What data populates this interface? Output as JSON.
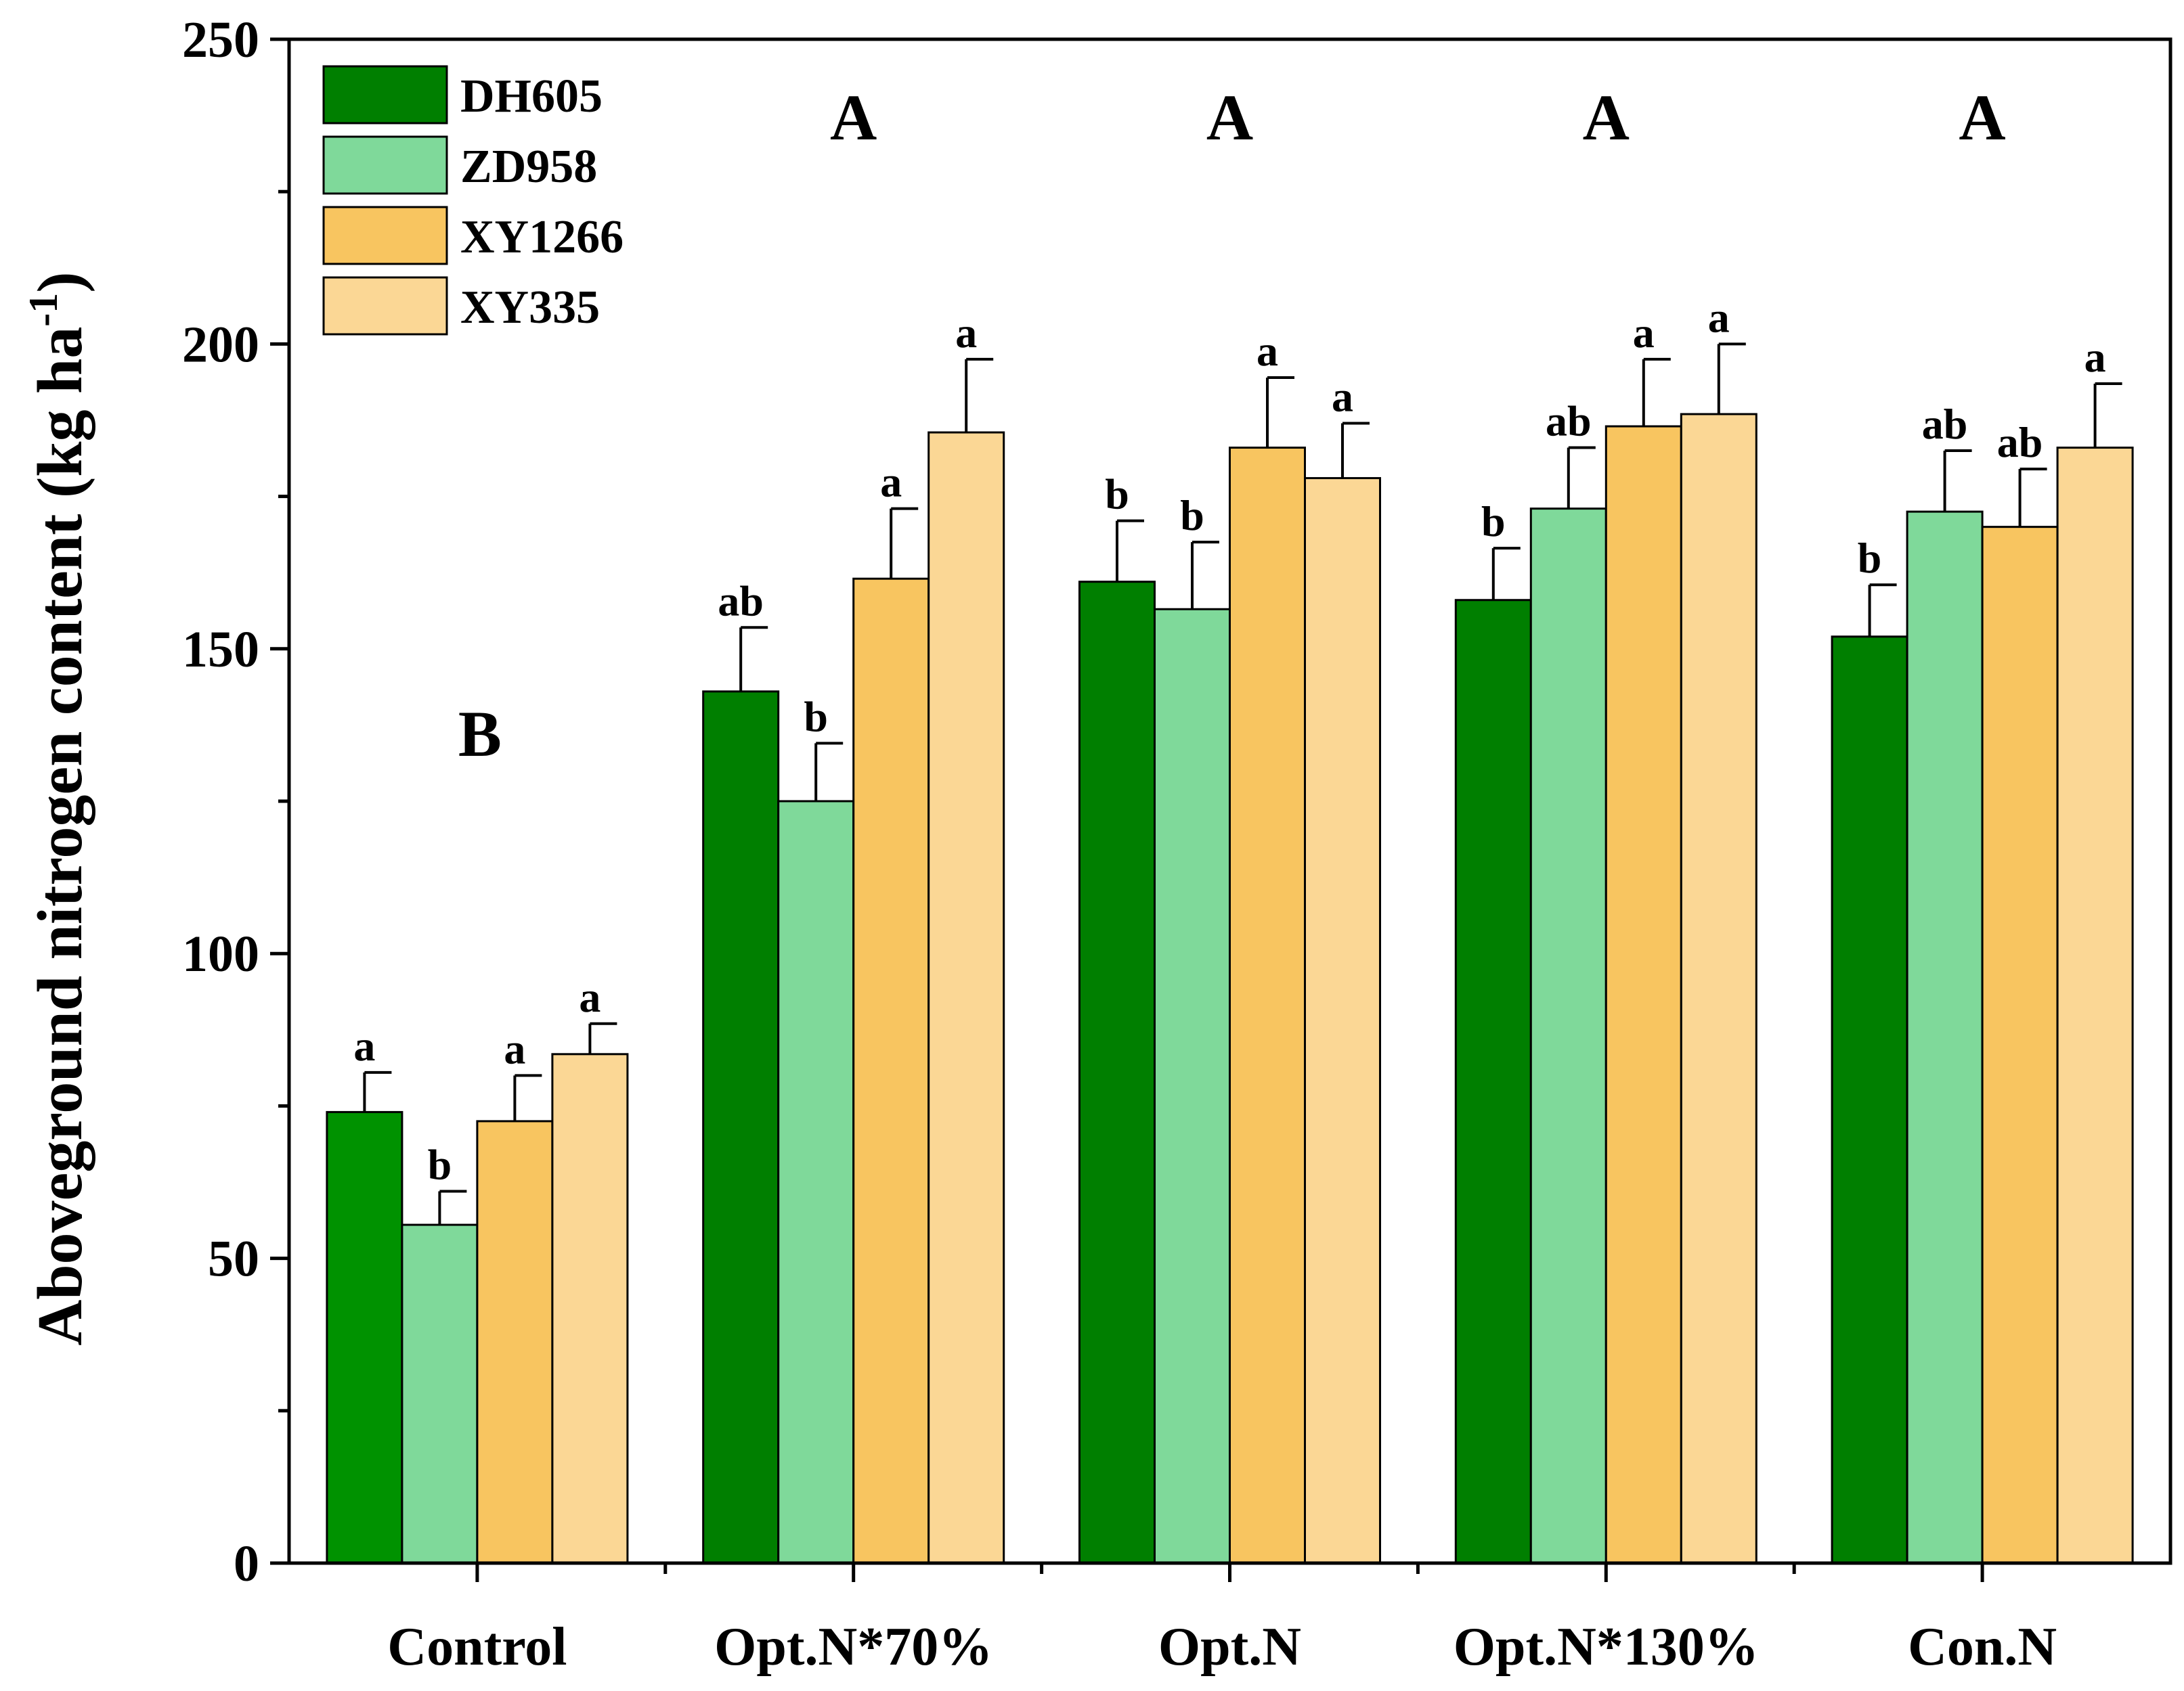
{
  "chart_data": {
    "type": "bar",
    "ylabel": "Aboveground nitrogen content (kg ha",
    "ylabel_superscript": "-1",
    "ylabel_suffix": ")",
    "xlabel": "",
    "ylim": [
      0,
      250
    ],
    "yticks": [
      0,
      50,
      100,
      150,
      200,
      250
    ],
    "yticks_minor_step": 25,
    "legend_position": "top-left",
    "categories": [
      "Control",
      "Opt.N*70%",
      "Opt.N",
      "Opt.N*130%",
      "Con.N"
    ],
    "group_letters": [
      "B",
      "A",
      "A",
      "A",
      "A"
    ],
    "series": [
      {
        "name": "DH605",
        "color": "#007F00",
        "values": [
          74,
          143,
          161,
          158,
          152
        ],
        "errors": [
          6.5,
          10.5,
          10,
          8.5,
          8.5
        ],
        "letters": [
          "a",
          "ab",
          "b",
          "b",
          "b"
        ]
      },
      {
        "name": "ZD958",
        "color": "#7FD99A",
        "values": [
          55.5,
          125,
          156.5,
          173,
          172.5
        ],
        "errors": [
          5.5,
          9.5,
          11,
          10,
          10
        ],
        "letters": [
          "b",
          "b",
          "b",
          "ab",
          "ab"
        ]
      },
      {
        "name": "XY1266",
        "color": "#F8C560",
        "values": [
          72.5,
          161.5,
          183,
          186.5,
          170
        ],
        "errors": [
          7.5,
          11.5,
          11.5,
          11,
          9.5
        ],
        "letters": [
          "a",
          "a",
          "a",
          "a",
          "ab"
        ]
      },
      {
        "name": "XY335",
        "color": "#FBD795",
        "values": [
          83.5,
          185.5,
          178,
          188.5,
          183
        ],
        "errors": [
          5,
          12,
          9,
          11.5,
          10.5
        ],
        "letters": [
          "a",
          "a",
          "a",
          "a",
          "a"
        ]
      }
    ],
    "control_dh605_color": "#009200"
  }
}
